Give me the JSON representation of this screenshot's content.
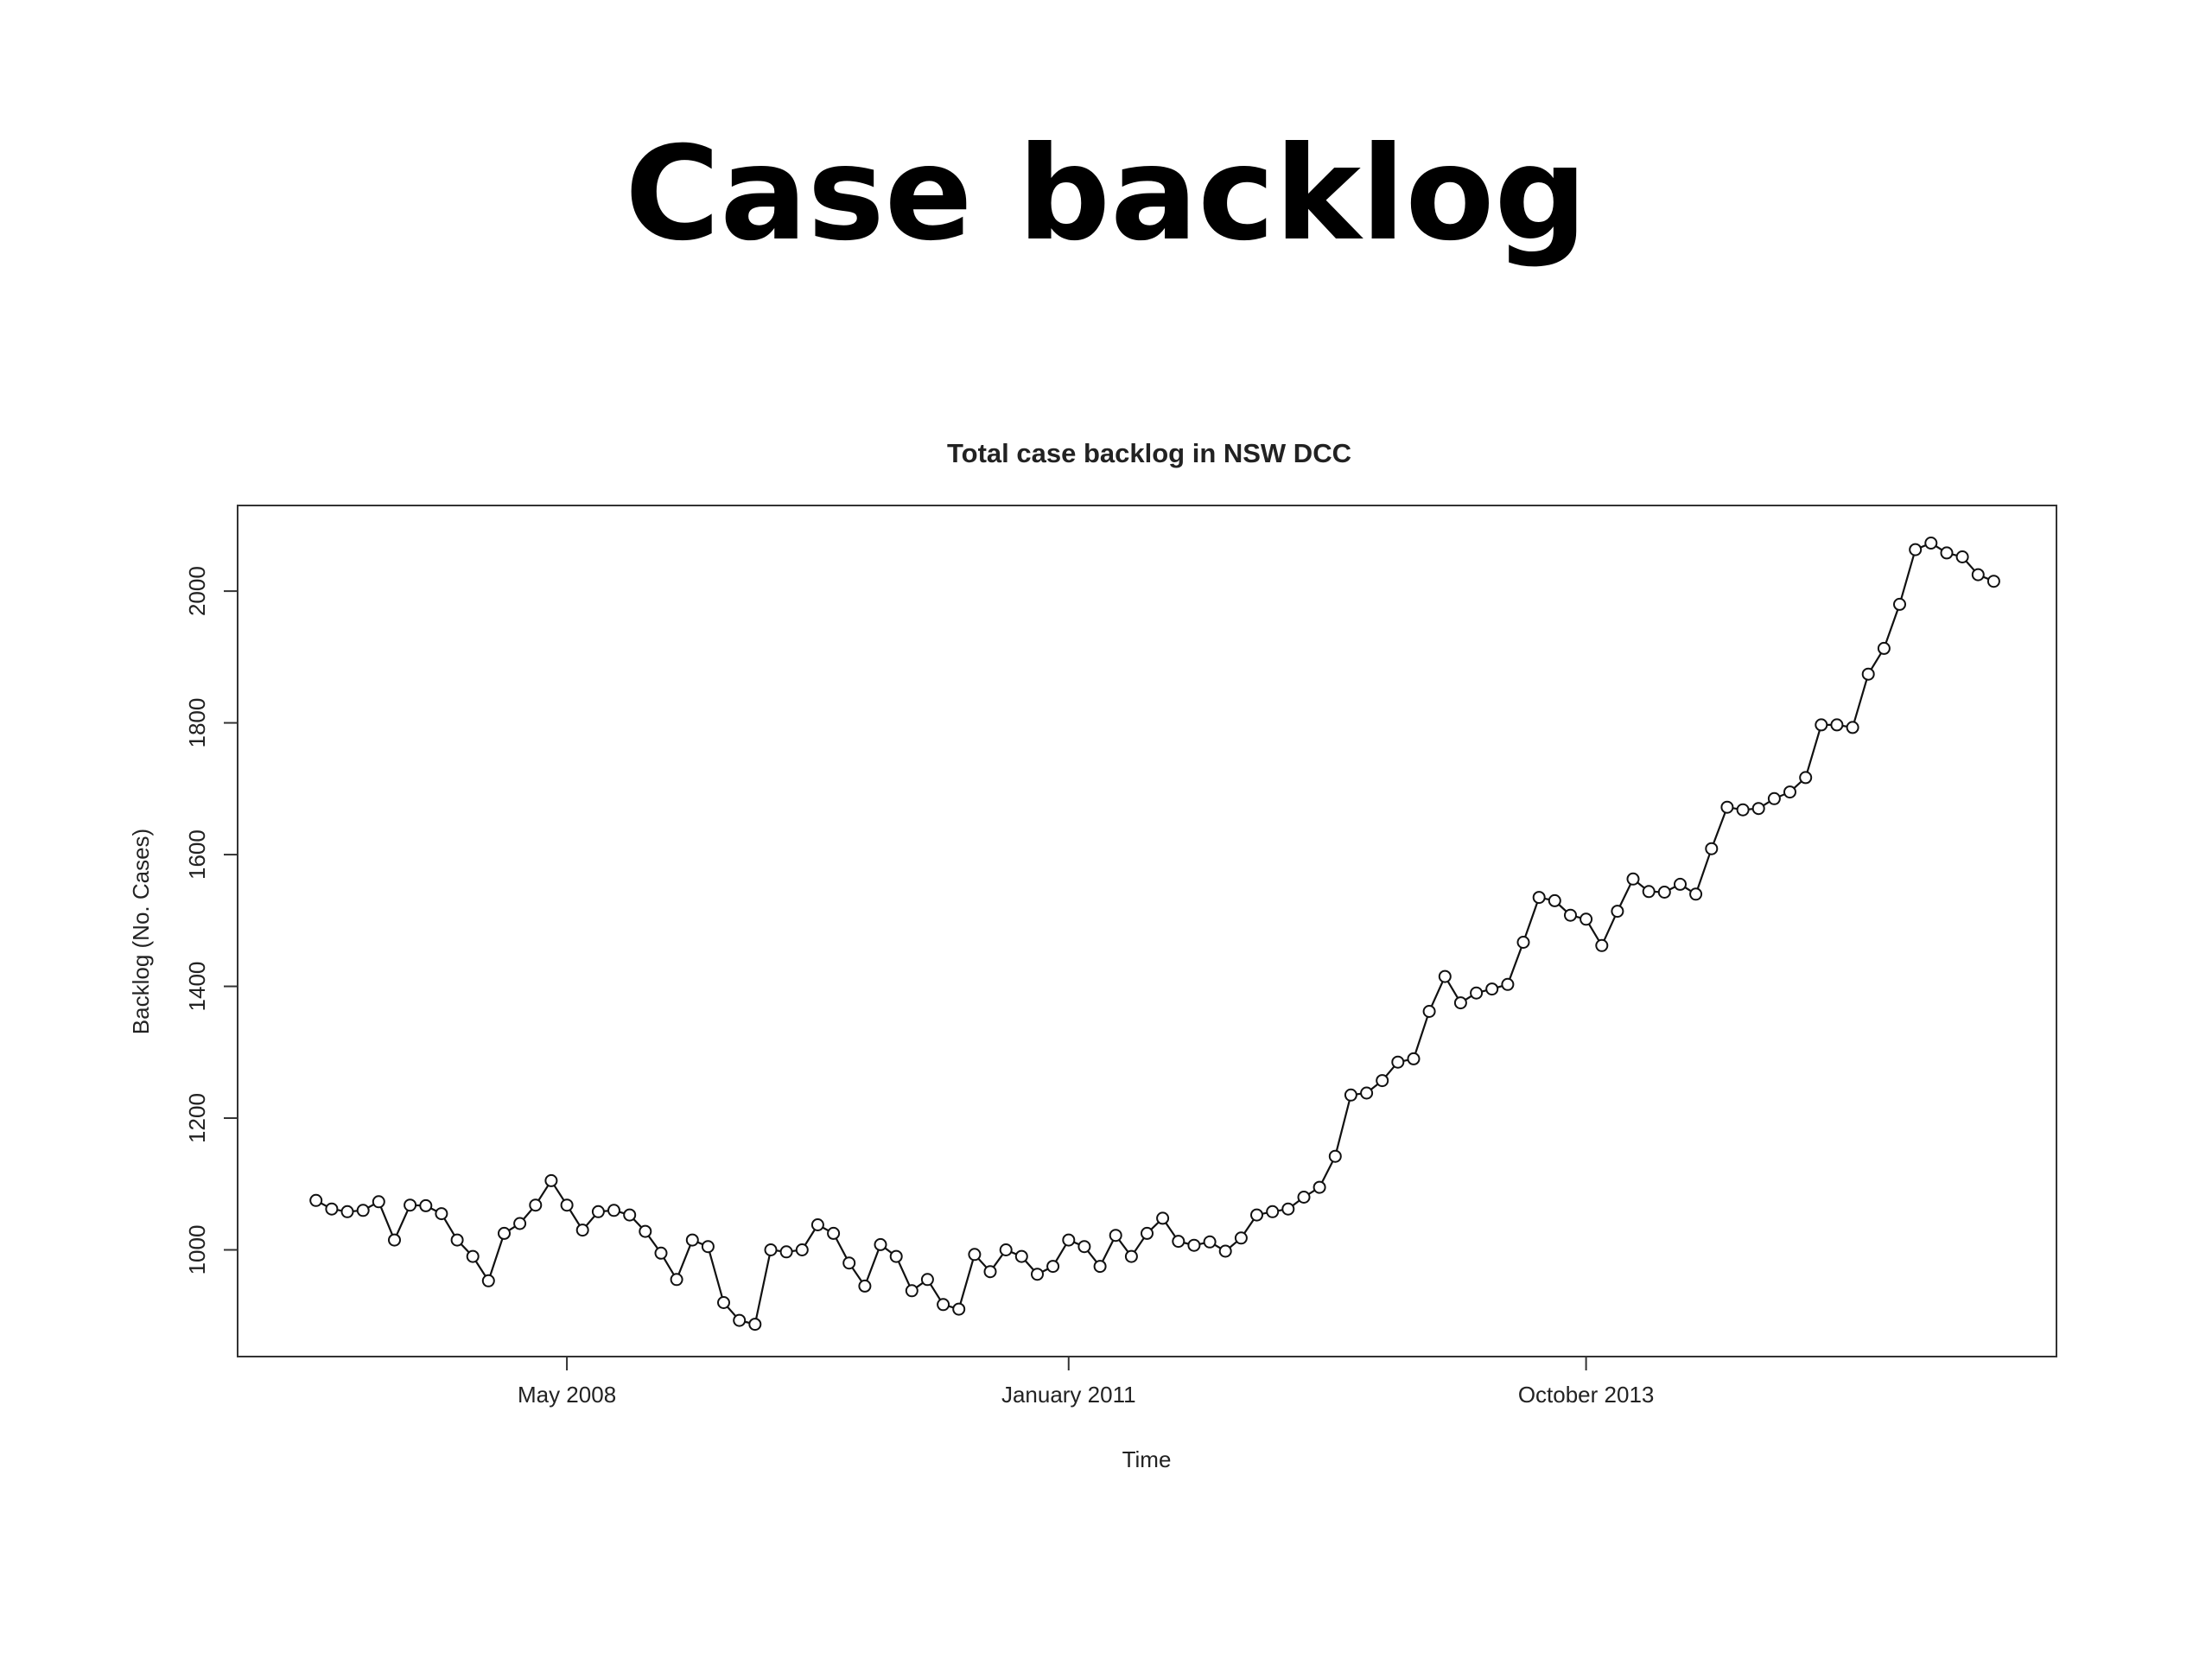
{
  "slide": {
    "title": "Case backlog"
  },
  "chart_data": {
    "type": "line",
    "title": "Total case backlog in NSW DCC",
    "xlabel": "Time",
    "ylabel": "Backlog (No. Cases)",
    "x_axis": {
      "type": "date",
      "ticks": [
        "2008-05",
        "2011-01",
        "2013-10"
      ],
      "tick_labels": [
        "May 2008",
        "January 2011",
        "October 2013"
      ]
    },
    "y_axis": {
      "ticks": [
        1000,
        1200,
        1400,
        1600,
        1800,
        2000
      ],
      "tick_labels": [
        "1000",
        "1200",
        "1400",
        "1600",
        "1800",
        "2000"
      ]
    },
    "xlim": [
      "2006-08",
      "2016-04"
    ],
    "ylim": [
      838,
      2130
    ],
    "grid": false,
    "marker": "open-circle",
    "series": [
      {
        "name": "",
        "start": "2007-01",
        "frequency": "monthly",
        "values": [
          1075,
          1062,
          1058,
          1060,
          1073,
          1015,
          1068,
          1067,
          1055,
          1015,
          990,
          953,
          1025,
          1040,
          1068,
          1105,
          1068,
          1030,
          1058,
          1060,
          1053,
          1028,
          995,
          955,
          1015,
          1005,
          920,
          893,
          887,
          1000,
          997,
          1000,
          1038,
          1025,
          980,
          945,
          1008,
          990,
          938,
          955,
          917,
          910,
          993,
          967,
          1000,
          990,
          963,
          975,
          1015,
          1005,
          975,
          1022,
          990,
          1025,
          1048,
          1013,
          1007,
          1012,
          998,
          1018,
          1053,
          1058,
          1062,
          1080,
          1095,
          1142,
          1235,
          1238,
          1257,
          1285,
          1290,
          1362,
          1415,
          1375,
          1390,
          1396,
          1403,
          1467,
          1535,
          1530,
          1508,
          1502,
          1462,
          1514,
          1563,
          1544,
          1543,
          1555,
          1540,
          1609,
          1672,
          1668,
          1670,
          1685,
          1695,
          1717,
          1797,
          1797,
          1793,
          1874,
          1913,
          1980,
          2063,
          2073,
          2058,
          2052,
          2025,
          2015
        ]
      }
    ]
  }
}
